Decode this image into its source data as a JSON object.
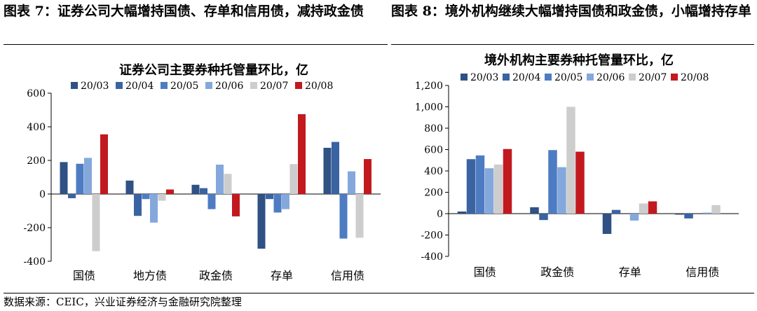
{
  "left_caption": "图表 7：证券公司大幅增持国债、存单和信用债，减持政金债",
  "right_caption": "图表 8：境外机构继续大幅增持国债和政金债，小幅增持存单",
  "source": "数据来源：CEIC，兴业证券经济与金融研究院整理",
  "colors": {
    "20/03": "#2f5184",
    "20/04": "#3a63a2",
    "20/05": "#4e7cc3",
    "20/06": "#84a8dc",
    "20/07": "#cdcdcd",
    "20/08": "#c2191f"
  },
  "chart_data": [
    {
      "type": "bar",
      "title": "证券公司主要券种托管量环比，亿",
      "categories": [
        "国债",
        "地方债",
        "政金债",
        "存单",
        "信用债"
      ],
      "ylim": [
        -400,
        600
      ],
      "yticks": [
        -400,
        -200,
        0,
        200,
        400,
        600
      ],
      "ytick_labels": [
        "-400",
        "-200",
        "0",
        "200",
        "400",
        "600"
      ],
      "legend_position": "top",
      "grid": false,
      "series": [
        {
          "name": "20/03",
          "values": [
            190,
            80,
            55,
            -325,
            275
          ]
        },
        {
          "name": "20/04",
          "values": [
            -25,
            -130,
            35,
            -30,
            310
          ]
        },
        {
          "name": "20/05",
          "values": [
            180,
            -30,
            -90,
            -110,
            -265
          ]
        },
        {
          "name": "20/06",
          "values": [
            215,
            -170,
            175,
            -90,
            135
          ]
        },
        {
          "name": "20/07",
          "values": [
            -340,
            -40,
            120,
            178,
            -260
          ]
        },
        {
          "name": "20/08",
          "values": [
            355,
            27,
            -133,
            475,
            208
          ]
        }
      ]
    },
    {
      "type": "bar",
      "title": "境外机构主要券种托管量环比，亿",
      "categories": [
        "国债",
        "政金债",
        "存单",
        "信用债"
      ],
      "ylim": [
        -400,
        1200
      ],
      "yticks": [
        -400,
        -200,
        0,
        200,
        400,
        600,
        800,
        1000,
        1200
      ],
      "ytick_labels": [
        "-400",
        "-200",
        "0",
        "200",
        "400",
        "600",
        "800",
        "1,000",
        "1,200"
      ],
      "legend_position": "top",
      "grid": false,
      "series": [
        {
          "name": "20/03",
          "values": [
            20,
            60,
            -190,
            -10
          ]
        },
        {
          "name": "20/04",
          "values": [
            510,
            -60,
            35,
            -45
          ]
        },
        {
          "name": "20/05",
          "values": [
            545,
            595,
            0,
            0
          ]
        },
        {
          "name": "20/06",
          "values": [
            425,
            435,
            -65,
            10
          ]
        },
        {
          "name": "20/07",
          "values": [
            460,
            1000,
            95,
            80
          ]
        },
        {
          "name": "20/08",
          "values": [
            605,
            580,
            115,
            0
          ]
        }
      ]
    }
  ]
}
